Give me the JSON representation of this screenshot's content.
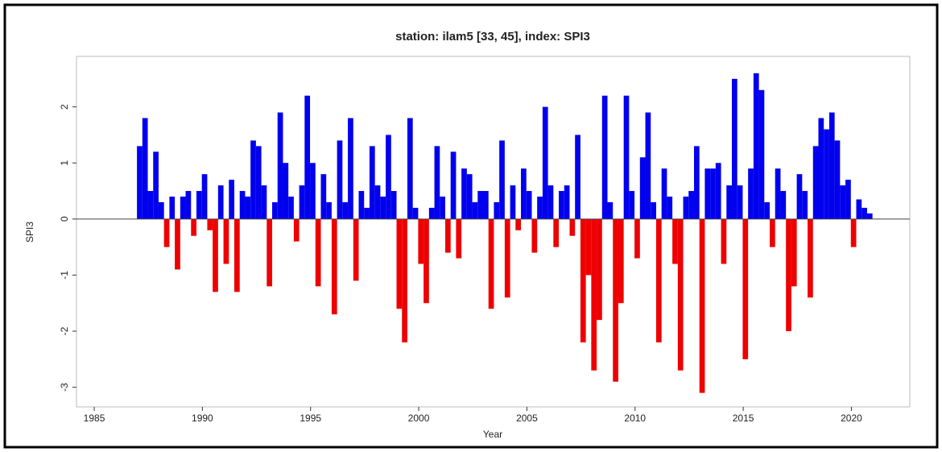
{
  "chart_data": {
    "type": "bar",
    "title": "station: ilam5 [33, 45], index: SPI3",
    "x_label": "Year",
    "y_label": "SPI3",
    "pos_color": "#0000ee",
    "neg_color": "#ee0000",
    "xlim": [
      1984.18,
      2022.7
    ],
    "xticks": [
      1985,
      1990,
      1995,
      2000,
      2005,
      2010,
      2015,
      2020
    ],
    "ylim": [
      -3.35,
      2.9
    ],
    "yticks": [
      -3,
      -2,
      -1,
      0,
      1,
      2
    ],
    "x": [
      1987.1,
      1987.35,
      1987.6,
      1987.85,
      1988.1,
      1988.35,
      1988.6,
      1988.85,
      1989.1,
      1989.35,
      1989.6,
      1989.85,
      1990.1,
      1990.35,
      1990.6,
      1990.85,
      1991.1,
      1991.35,
      1991.6,
      1991.85,
      1992.1,
      1992.35,
      1992.6,
      1992.85,
      1993.1,
      1993.35,
      1993.6,
      1993.85,
      1994.1,
      1994.35,
      1994.6,
      1994.85,
      1995.1,
      1995.35,
      1995.6,
      1995.85,
      1996.1,
      1996.35,
      1996.6,
      1996.85,
      1997.1,
      1997.35,
      1997.6,
      1997.85,
      1998.1,
      1998.35,
      1998.6,
      1998.85,
      1999.1,
      1999.35,
      1999.6,
      1999.85,
      2000.1,
      2000.35,
      2000.6,
      2000.85,
      2001.1,
      2001.35,
      2001.6,
      2001.85,
      2002.1,
      2002.35,
      2002.6,
      2002.85,
      2003.1,
      2003.35,
      2003.6,
      2003.85,
      2004.1,
      2004.35,
      2004.6,
      2004.85,
      2005.1,
      2005.35,
      2005.6,
      2005.85,
      2006.1,
      2006.35,
      2006.6,
      2006.85,
      2007.1,
      2007.35,
      2007.6,
      2007.85,
      2008.1,
      2008.35,
      2008.6,
      2008.85,
      2009.1,
      2009.35,
      2009.6,
      2009.85,
      2010.1,
      2010.35,
      2010.6,
      2010.85,
      2011.1,
      2011.35,
      2011.6,
      2011.85,
      2012.1,
      2012.35,
      2012.6,
      2012.85,
      2013.1,
      2013.35,
      2013.6,
      2013.85,
      2014.1,
      2014.35,
      2014.6,
      2014.85,
      2015.1,
      2015.35,
      2015.6,
      2015.85,
      2016.1,
      2016.35,
      2016.6,
      2016.85,
      2017.1,
      2017.35,
      2017.6,
      2017.85,
      2018.1,
      2018.35,
      2018.6,
      2018.85,
      2019.1,
      2019.35,
      2019.6,
      2019.85,
      2020.1,
      2020.35,
      2020.6,
      2020.85
    ],
    "values": [
      1.3,
      1.8,
      0.5,
      1.2,
      0.3,
      -0.5,
      0.4,
      -0.9,
      0.4,
      0.5,
      -0.3,
      0.5,
      0.8,
      -0.2,
      -1.3,
      0.6,
      -0.8,
      0.7,
      -1.3,
      0.5,
      0.4,
      1.4,
      1.3,
      0.6,
      -1.2,
      0.3,
      1.9,
      1.0,
      0.4,
      -0.4,
      0.6,
      2.2,
      1.0,
      -1.2,
      0.8,
      0.3,
      -1.7,
      1.4,
      0.3,
      1.8,
      -1.1,
      0.5,
      0.2,
      1.3,
      0.6,
      0.4,
      1.5,
      0.5,
      -1.6,
      -2.2,
      1.8,
      0.2,
      -0.8,
      -1.5,
      0.2,
      1.3,
      0.4,
      -0.6,
      1.2,
      -0.7,
      0.9,
      0.8,
      0.3,
      0.5,
      0.5,
      -1.6,
      0.3,
      1.4,
      -1.4,
      0.6,
      -0.2,
      0.9,
      0.5,
      -0.6,
      0.4,
      2.0,
      0.6,
      -0.5,
      0.5,
      0.6,
      -0.3,
      1.5,
      -2.2,
      -1.0,
      -2.7,
      -1.8,
      2.2,
      0.3,
      -2.9,
      -1.5,
      2.2,
      0.5,
      -0.7,
      1.1,
      1.9,
      0.3,
      -2.2,
      0.9,
      0.4,
      -0.8,
      -2.7,
      0.4,
      0.5,
      1.3,
      -3.1,
      0.9,
      0.9,
      1.0,
      -0.8,
      0.6,
      2.5,
      0.6,
      -2.5,
      0.9,
      2.6,
      2.3,
      0.3,
      -0.5,
      0.9,
      0.5,
      -2.0,
      -1.2,
      0.8,
      0.5,
      -1.4,
      1.3,
      1.8,
      1.6,
      1.9,
      1.4,
      0.6,
      0.7,
      -0.5,
      0.35,
      0.2,
      0.1
    ]
  }
}
